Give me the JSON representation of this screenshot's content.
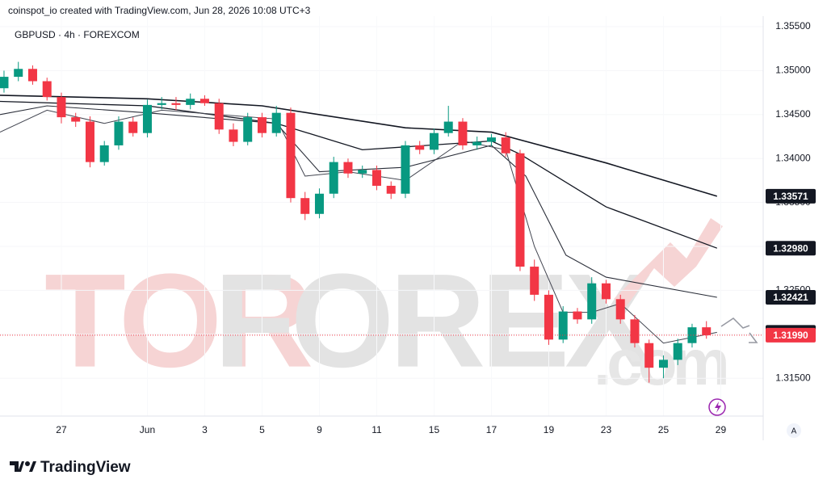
{
  "header": {
    "credit": "coinspot_io created with TradingView.com, Jun 28, 2026 10:08 UTC+3"
  },
  "footer": {
    "logo": "TradingView",
    "button": "A"
  },
  "watermark": {
    "parts": [
      "TOR",
      "FOREX",
      ".com"
    ]
  },
  "chart_data": {
    "type": "candlestick",
    "title": "GBPUSD · 4h · FOREXCOM",
    "up_color": "#089981",
    "down_color": "#f23645",
    "x": [
      0,
      0.5,
      1,
      1.5,
      2,
      2.5,
      3,
      3.5,
      4,
      4.5,
      5,
      5.5,
      6,
      6.5,
      7,
      7.5,
      8,
      8.5,
      9,
      9.5,
      10,
      10.5,
      11,
      11.5,
      12,
      12.5,
      13,
      13.5,
      14,
      14.5,
      15,
      15.5,
      16,
      16.5,
      17,
      17.5,
      18,
      18.5,
      19,
      19.5,
      20,
      20.5,
      21,
      21.5,
      22,
      22.5,
      23,
      23.5,
      24,
      24.5
    ],
    "open": [
      1.348,
      1.3493,
      1.3502,
      1.3488,
      1.347,
      1.3447,
      1.3442,
      1.3396,
      1.3415,
      1.3442,
      1.3429,
      1.3461,
      1.3463,
      1.3461,
      1.3468,
      1.3463,
      1.3433,
      1.3419,
      1.3447,
      1.3429,
      1.3452,
      1.3355,
      1.3337,
      1.336,
      1.3396,
      1.3383,
      1.3387,
      1.3369,
      1.336,
      1.3415,
      1.341,
      1.3429,
      1.3442,
      1.3415,
      1.3419,
      1.3424,
      1.3406,
      1.3277,
      1.3245,
      1.3194,
      1.3226,
      1.3217,
      1.3258,
      1.324,
      1.3217,
      1.319,
      1.3162,
      1.3171,
      1.319,
      1.3208
    ],
    "high": [
      1.35,
      1.351,
      1.3506,
      1.3492,
      1.3475,
      1.3452,
      1.3448,
      1.342,
      1.3448,
      1.3447,
      1.3467,
      1.347,
      1.347,
      1.3474,
      1.3472,
      1.3468,
      1.344,
      1.3452,
      1.3452,
      1.346,
      1.3458,
      1.3362,
      1.3366,
      1.3402,
      1.34,
      1.3392,
      1.3392,
      1.3374,
      1.342,
      1.342,
      1.3434,
      1.346,
      1.3446,
      1.3425,
      1.3428,
      1.343,
      1.341,
      1.3285,
      1.325,
      1.3232,
      1.323,
      1.3265,
      1.3262,
      1.3245,
      1.3222,
      1.3194,
      1.3176,
      1.3195,
      1.3212,
      1.3215
    ],
    "low": [
      1.3475,
      1.3488,
      1.3484,
      1.3466,
      1.344,
      1.3436,
      1.339,
      1.3392,
      1.341,
      1.3425,
      1.3424,
      1.3456,
      1.3455,
      1.3456,
      1.346,
      1.3428,
      1.3414,
      1.3415,
      1.3424,
      1.3425,
      1.335,
      1.333,
      1.3332,
      1.3355,
      1.3378,
      1.3378,
      1.3364,
      1.3354,
      1.3355,
      1.3405,
      1.3405,
      1.3425,
      1.341,
      1.341,
      1.3414,
      1.3402,
      1.3272,
      1.3238,
      1.3188,
      1.319,
      1.3212,
      1.3212,
      1.3235,
      1.3212,
      1.3185,
      1.3145,
      1.315,
      1.3165,
      1.3185,
      1.3195
    ],
    "close": [
      1.3493,
      1.3502,
      1.3488,
      1.347,
      1.3447,
      1.3442,
      1.3396,
      1.3415,
      1.3442,
      1.3429,
      1.3461,
      1.3463,
      1.3461,
      1.3468,
      1.3463,
      1.3433,
      1.3419,
      1.3447,
      1.3429,
      1.3452,
      1.3355,
      1.3337,
      1.336,
      1.3396,
      1.3383,
      1.3387,
      1.3369,
      1.336,
      1.3415,
      1.341,
      1.3429,
      1.3442,
      1.3415,
      1.3419,
      1.3424,
      1.3406,
      1.3277,
      1.3245,
      1.3194,
      1.3226,
      1.3217,
      1.3258,
      1.324,
      1.3217,
      1.319,
      1.3162,
      1.3171,
      1.319,
      1.3208,
      1.3199
    ],
    "series": [
      {
        "color": "#131722",
        "width": 1.6,
        "x": [
          -0.14,
          5,
          9,
          14,
          17,
          21,
          24.87
        ],
        "values": [
          1.3472,
          1.3468,
          1.346,
          1.3435,
          1.343,
          1.3395,
          1.33571
        ]
      },
      {
        "color": "#131722",
        "width": 1.3,
        "x": [
          -0.14,
          5,
          9.5,
          12.5,
          17,
          18,
          21,
          24.87
        ],
        "values": [
          1.3465,
          1.346,
          1.344,
          1.341,
          1.342,
          1.3405,
          1.3345,
          1.3298
        ]
      },
      {
        "color": "#2a2e39",
        "width": 1.1,
        "x": [
          -0.14,
          1.5,
          5,
          9.5,
          11,
          14,
          17,
          18.2,
          19.6,
          21,
          24.87
        ],
        "values": [
          1.345,
          1.346,
          1.3452,
          1.344,
          1.3385,
          1.339,
          1.3415,
          1.338,
          1.329,
          1.3265,
          1.32421
        ]
      },
      {
        "color": "#434651",
        "width": 1,
        "x": [
          -0.14,
          1.5,
          3.5,
          5.5,
          9.5,
          10.5,
          12,
          14,
          16,
          17.5,
          18.5,
          19.5,
          20.5,
          21.5,
          23,
          24.87
        ],
        "values": [
          1.343,
          1.3455,
          1.344,
          1.3455,
          1.3445,
          1.338,
          1.3385,
          1.3375,
          1.342,
          1.341,
          1.33,
          1.3225,
          1.3225,
          1.3235,
          1.319,
          1.32022
        ]
      }
    ],
    "price_labels": [
      {
        "value": 1.33571,
        "label": "1.33571",
        "color": "#131722"
      },
      {
        "value": 1.3298,
        "label": "1.32980",
        "color": "#131722"
      },
      {
        "value": 1.32421,
        "label": "1.32421",
        "color": "#131722"
      },
      {
        "value": 1.32022,
        "label": "1.32022",
        "color": "#131722"
      },
      {
        "value": 1.3199,
        "label": "1.31990",
        "color": "#f23645"
      }
    ],
    "xlim": [
      -0.14,
      26.48
    ],
    "ylim": [
      1.3107,
      1.3562
    ],
    "xticks": [
      {
        "value": 2,
        "label": "27"
      },
      {
        "value": 5,
        "label": "Jun"
      },
      {
        "value": 7,
        "label": "3"
      },
      {
        "value": 9,
        "label": "5"
      },
      {
        "value": 11,
        "label": "9"
      },
      {
        "value": 13,
        "label": "11"
      },
      {
        "value": 15,
        "label": "15"
      },
      {
        "value": 17,
        "label": "17"
      },
      {
        "value": 19,
        "label": "19"
      },
      {
        "value": 21,
        "label": "23"
      },
      {
        "value": 23,
        "label": "25"
      },
      {
        "value": 25,
        "label": "29"
      }
    ],
    "yticks": [
      {
        "value": 1.355,
        "label": "1.35500"
      },
      {
        "value": 1.35,
        "label": "1.35000"
      },
      {
        "value": 1.345,
        "label": "1.34500"
      },
      {
        "value": 1.34,
        "label": "1.34000"
      },
      {
        "value": 1.335,
        "label": "1.33500"
      },
      {
        "value": 1.33,
        "label": "1.33000"
      },
      {
        "value": 1.325,
        "label": "1.32500"
      },
      {
        "value": 1.32,
        "label": "1.32000"
      },
      {
        "value": 1.315,
        "label": "1.31500"
      }
    ]
  }
}
